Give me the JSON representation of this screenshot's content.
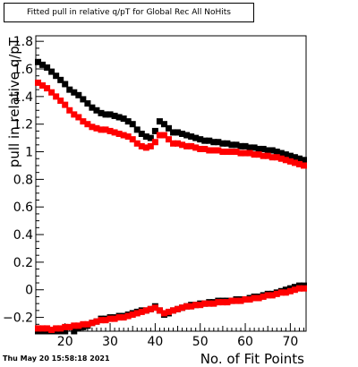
{
  "title": "Fitted pull in relative q/pT for Global Rec All NoHits",
  "footer": {
    "datetime": "Thu May 20 15:58:18 2021"
  },
  "colors": {
    "mean": "#000000",
    "mean_alt": "#ff0000",
    "sigma": "#000000",
    "sigma_alt": "#ff0000"
  },
  "chart_data": {
    "type": "scatter",
    "title": "Fitted pull in relative q/pT for Global Rec All NoHits",
    "xlabel": "No. of Fit Points",
    "ylabel": "pull in relative q/pT",
    "xlim": [
      13.5,
      73.5
    ],
    "ylim": [
      -0.3,
      1.84
    ],
    "x_ticks": [
      20,
      30,
      40,
      50,
      60,
      70
    ],
    "y_ticks": [
      -0.2,
      0,
      0.2,
      0.4,
      0.6,
      0.8,
      1,
      1.2,
      1.4,
      1.6,
      1.8
    ],
    "x_tick_labels": [
      "20",
      "30",
      "40",
      "50",
      "60",
      "70"
    ],
    "y_tick_labels": [
      "−0.2",
      "0",
      "0.2",
      "0.4",
      "0.6",
      "0.8",
      "1",
      "1.2",
      "1.4",
      "1.6",
      "1.8"
    ],
    "grid": false,
    "marker": "square",
    "series": [
      {
        "color": "#000000",
        "x": [
          14,
          15,
          16,
          17,
          18,
          19,
          20,
          21,
          22,
          23,
          24,
          25,
          26,
          27,
          28,
          29,
          30,
          31,
          32,
          33,
          34,
          35,
          36,
          37,
          38,
          39,
          40,
          41,
          42,
          43,
          44,
          45,
          46,
          47,
          48,
          49,
          50,
          51,
          52,
          53,
          54,
          55,
          56,
          57,
          58,
          59,
          60,
          61,
          62,
          63,
          64,
          65,
          66,
          67,
          68,
          69,
          70,
          71,
          72,
          73
        ],
        "y": [
          1.65,
          1.63,
          1.61,
          1.58,
          1.55,
          1.52,
          1.49,
          1.45,
          1.43,
          1.41,
          1.38,
          1.35,
          1.32,
          1.3,
          1.28,
          1.27,
          1.27,
          1.26,
          1.25,
          1.24,
          1.22,
          1.2,
          1.16,
          1.13,
          1.11,
          1.1,
          1.15,
          1.22,
          1.2,
          1.17,
          1.14,
          1.14,
          1.13,
          1.12,
          1.11,
          1.1,
          1.09,
          1.08,
          1.08,
          1.07,
          1.07,
          1.06,
          1.06,
          1.05,
          1.05,
          1.04,
          1.04,
          1.03,
          1.03,
          1.02,
          1.02,
          1.01,
          1.01,
          1.0,
          0.99,
          0.98,
          0.97,
          0.96,
          0.95,
          0.94
        ]
      },
      {
        "color": "#ff0000",
        "x": [
          14,
          15,
          16,
          17,
          18,
          19,
          20,
          21,
          22,
          23,
          24,
          25,
          26,
          27,
          28,
          29,
          30,
          31,
          32,
          33,
          34,
          35,
          36,
          37,
          38,
          39,
          40,
          41,
          42,
          43,
          44,
          45,
          46,
          47,
          48,
          49,
          50,
          51,
          52,
          53,
          54,
          55,
          56,
          57,
          58,
          59,
          60,
          61,
          62,
          63,
          64,
          65,
          66,
          67,
          68,
          69,
          70,
          71,
          72,
          73
        ],
        "y": [
          1.5,
          1.48,
          1.46,
          1.43,
          1.4,
          1.37,
          1.34,
          1.3,
          1.27,
          1.25,
          1.22,
          1.2,
          1.18,
          1.17,
          1.16,
          1.16,
          1.15,
          1.14,
          1.13,
          1.12,
          1.11,
          1.09,
          1.06,
          1.04,
          1.03,
          1.04,
          1.07,
          1.12,
          1.12,
          1.09,
          1.06,
          1.06,
          1.05,
          1.04,
          1.04,
          1.03,
          1.02,
          1.02,
          1.01,
          1.01,
          1.01,
          1.0,
          1.0,
          1.0,
          1.0,
          0.99,
          0.99,
          0.99,
          0.98,
          0.98,
          0.97,
          0.97,
          0.96,
          0.96,
          0.95,
          0.94,
          0.93,
          0.92,
          0.91,
          0.9
        ]
      },
      {
        "color": "#000000",
        "x": [
          14,
          15,
          16,
          17,
          18,
          19,
          20,
          21,
          22,
          23,
          24,
          25,
          26,
          27,
          28,
          29,
          30,
          31,
          32,
          33,
          34,
          35,
          36,
          37,
          38,
          39,
          40,
          41,
          42,
          43,
          44,
          45,
          46,
          47,
          48,
          49,
          50,
          51,
          52,
          53,
          54,
          55,
          56,
          57,
          58,
          59,
          60,
          61,
          62,
          63,
          64,
          65,
          66,
          67,
          68,
          69,
          70,
          71,
          72,
          73
        ],
        "y": [
          -0.3,
          -0.3,
          -0.3,
          -0.3,
          -0.3,
          -0.3,
          -0.3,
          -0.31,
          -0.3,
          -0.28,
          -0.27,
          -0.26,
          -0.24,
          -0.23,
          -0.21,
          -0.21,
          -0.2,
          -0.2,
          -0.19,
          -0.19,
          -0.18,
          -0.17,
          -0.16,
          -0.15,
          -0.15,
          -0.14,
          -0.12,
          -0.15,
          -0.18,
          -0.17,
          -0.15,
          -0.14,
          -0.13,
          -0.12,
          -0.11,
          -0.11,
          -0.1,
          -0.1,
          -0.09,
          -0.09,
          -0.08,
          -0.08,
          -0.08,
          -0.08,
          -0.07,
          -0.07,
          -0.07,
          -0.06,
          -0.05,
          -0.05,
          -0.04,
          -0.03,
          -0.03,
          -0.02,
          -0.01,
          0.0,
          0.01,
          0.02,
          0.03,
          0.03
        ]
      },
      {
        "color": "#ff0000",
        "x": [
          14,
          15,
          16,
          17,
          18,
          19,
          20,
          21,
          22,
          23,
          24,
          25,
          26,
          27,
          28,
          29,
          30,
          31,
          32,
          33,
          34,
          35,
          36,
          37,
          38,
          39,
          40,
          41,
          42,
          43,
          44,
          45,
          46,
          47,
          48,
          49,
          50,
          51,
          52,
          53,
          54,
          55,
          56,
          57,
          58,
          59,
          60,
          61,
          62,
          63,
          64,
          65,
          66,
          67,
          68,
          69,
          70,
          71,
          72,
          73
        ],
        "y": [
          -0.28,
          -0.28,
          -0.28,
          -0.29,
          -0.28,
          -0.28,
          -0.27,
          -0.27,
          -0.26,
          -0.26,
          -0.25,
          -0.25,
          -0.24,
          -0.23,
          -0.22,
          -0.22,
          -0.21,
          -0.21,
          -0.2,
          -0.2,
          -0.19,
          -0.18,
          -0.17,
          -0.16,
          -0.15,
          -0.14,
          -0.13,
          -0.15,
          -0.17,
          -0.16,
          -0.15,
          -0.14,
          -0.13,
          -0.12,
          -0.12,
          -0.11,
          -0.11,
          -0.1,
          -0.1,
          -0.1,
          -0.09,
          -0.09,
          -0.09,
          -0.08,
          -0.08,
          -0.08,
          -0.07,
          -0.07,
          -0.06,
          -0.06,
          -0.05,
          -0.04,
          -0.04,
          -0.03,
          -0.02,
          -0.02,
          -0.01,
          0.0,
          0.01,
          0.01
        ]
      }
    ]
  }
}
